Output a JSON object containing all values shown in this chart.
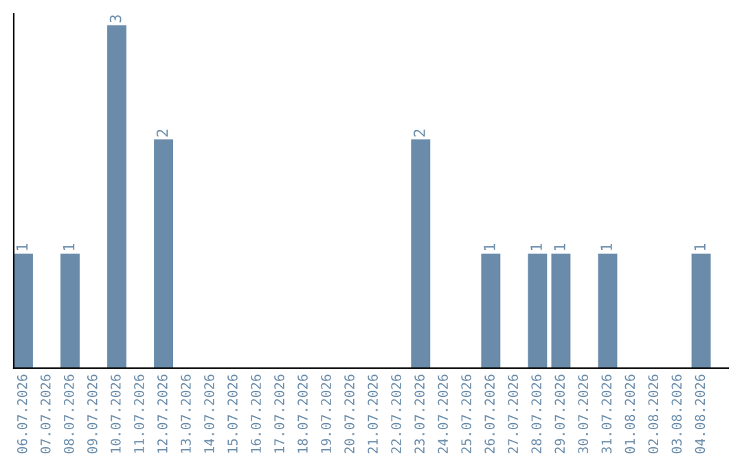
{
  "chart_data": {
    "type": "bar",
    "categories": [
      "06.07.2026",
      "07.07.2026",
      "08.07.2026",
      "09.07.2026",
      "10.07.2026",
      "11.07.2026",
      "12.07.2026",
      "13.07.2026",
      "14.07.2026",
      "15.07.2026",
      "16.07.2026",
      "17.07.2026",
      "18.07.2026",
      "19.07.2026",
      "20.07.2026",
      "21.07.2026",
      "22.07.2026",
      "23.07.2026",
      "24.07.2026",
      "25.07.2026",
      "26.07.2026",
      "27.07.2026",
      "28.07.2026",
      "29.07.2026",
      "30.07.2026",
      "31.07.2026",
      "01.08.2026",
      "02.08.2026",
      "03.08.2026",
      "04.08.2026"
    ],
    "values": [
      1,
      0,
      1,
      0,
      3,
      0,
      2,
      0,
      0,
      0,
      0,
      0,
      0,
      0,
      0,
      0,
      0,
      2,
      0,
      0,
      1,
      0,
      1,
      1,
      0,
      1,
      0,
      0,
      0,
      1
    ],
    "value_labels": [
      "1",
      null,
      "1",
      null,
      "3",
      null,
      "2",
      null,
      null,
      null,
      null,
      null,
      null,
      null,
      null,
      null,
      null,
      "2",
      null,
      null,
      "1",
      null,
      "1",
      "1",
      null,
      "1",
      null,
      null,
      null,
      "1"
    ],
    "color": "#6a8caa",
    "ylim": [
      0,
      3.1
    ],
    "tick_labels": "x",
    "grid": false,
    "legend": false
  }
}
